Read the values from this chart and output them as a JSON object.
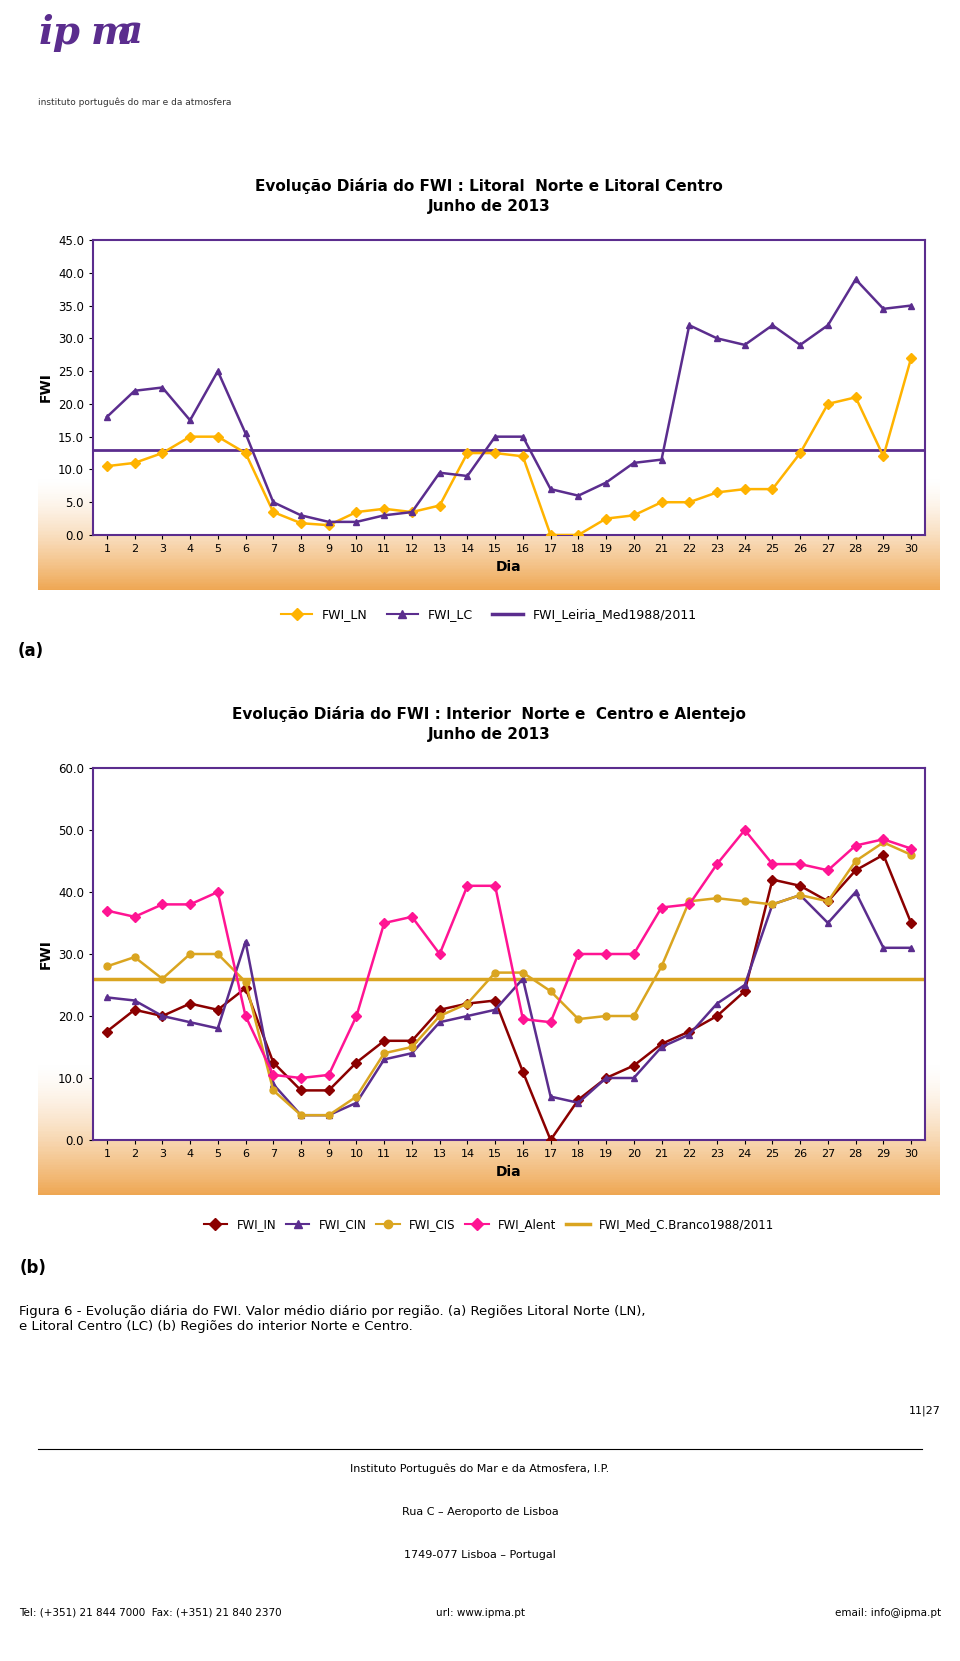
{
  "chart_bg": "#F5E6C8",
  "plot_bg": "#FFFFFF",
  "page_bg": "#FFFFFF",
  "title1": "Evolução Diária do FWI : Litoral  Norte e Litoral Centro\nJunho de 2013",
  "title2": "Evolução Diária do FWI : Interior  Norte e  Centro e Alentejo\nJunho de 2013",
  "xlabel": "Dia",
  "ylabel": "FWI",
  "days": [
    1,
    2,
    3,
    4,
    5,
    6,
    7,
    8,
    9,
    10,
    11,
    12,
    13,
    14,
    15,
    16,
    17,
    18,
    19,
    20,
    21,
    22,
    23,
    24,
    25,
    26,
    27,
    28,
    29,
    30
  ],
  "FWI_LN": [
    10.5,
    11.0,
    12.5,
    15.0,
    15.0,
    12.5,
    3.5,
    1.8,
    1.5,
    3.5,
    4.0,
    3.5,
    4.5,
    12.5,
    12.5,
    12.0,
    0.0,
    0.0,
    2.5,
    3.0,
    5.0,
    5.0,
    6.5,
    7.0,
    7.0,
    12.5,
    20.0,
    21.0,
    12.0,
    27.0
  ],
  "FWI_LC": [
    18.0,
    22.0,
    22.5,
    17.5,
    25.0,
    15.5,
    5.0,
    3.0,
    2.0,
    2.0,
    3.0,
    3.5,
    9.5,
    9.0,
    15.0,
    15.0,
    7.0,
    6.0,
    8.0,
    11.0,
    11.5,
    32.0,
    30.0,
    29.0,
    32.0,
    29.0,
    32.0,
    39.0,
    34.5,
    35.0
  ],
  "FWI_Leiria": 13.0,
  "FWI_IN": [
    17.5,
    21.0,
    20.0,
    22.0,
    21.0,
    24.5,
    12.5,
    8.0,
    8.0,
    12.5,
    16.0,
    16.0,
    21.0,
    22.0,
    22.5,
    11.0,
    0.0,
    6.5,
    10.0,
    12.0,
    15.5,
    17.5,
    20.0,
    24.0,
    42.0,
    41.0,
    38.5,
    43.5,
    46.0,
    35.0
  ],
  "FWI_CIN": [
    23.0,
    22.5,
    20.0,
    19.0,
    18.0,
    32.0,
    9.0,
    4.0,
    4.0,
    6.0,
    13.0,
    14.0,
    19.0,
    20.0,
    21.0,
    26.0,
    7.0,
    6.0,
    10.0,
    10.0,
    15.0,
    17.0,
    22.0,
    25.0,
    38.0,
    39.5,
    35.0,
    40.0,
    31.0,
    31.0
  ],
  "FWI_CIS": [
    28.0,
    29.5,
    26.0,
    30.0,
    30.0,
    25.5,
    8.0,
    4.0,
    4.0,
    7.0,
    14.0,
    15.0,
    20.0,
    22.0,
    27.0,
    27.0,
    24.0,
    19.5,
    20.0,
    20.0,
    28.0,
    38.5,
    39.0,
    38.5,
    38.0,
    39.5,
    38.5,
    45.0,
    48.0,
    46.0
  ],
  "FWI_Alent": [
    37.0,
    36.0,
    38.0,
    38.0,
    40.0,
    20.0,
    10.5,
    10.0,
    10.5,
    20.0,
    35.0,
    36.0,
    30.0,
    41.0,
    41.0,
    19.5,
    19.0,
    30.0,
    30.0,
    30.0,
    37.5,
    38.0,
    44.5,
    50.0,
    44.5,
    44.5,
    43.5,
    47.5,
    48.5,
    47.0
  ],
  "FWI_Med_CB": 26.0,
  "ylim1": [
    0.0,
    45.0
  ],
  "yticks1": [
    0.0,
    5.0,
    10.0,
    15.0,
    20.0,
    25.0,
    30.0,
    35.0,
    40.0,
    45.0
  ],
  "ylim2": [
    0.0,
    60.0
  ],
  "yticks2": [
    0.0,
    10.0,
    20.0,
    30.0,
    40.0,
    50.0,
    60.0
  ],
  "color_LN": "#FFB300",
  "color_LC": "#5B2D8E",
  "color_Leiria": "#5B2D8E",
  "color_IN": "#8B0000",
  "color_CIN": "#5B2D8E",
  "color_CIS": "#DAA520",
  "color_Alent": "#FF1493",
  "color_MedCB": "#DAA520",
  "marker_LN": "D",
  "marker_LC": "^",
  "marker_IN": "D",
  "marker_CIN": "^",
  "marker_CIS": "o",
  "marker_Alent": "D",
  "footer_line1": "Instituto Português do Mar e da Atmosfera, I.P.",
  "footer_line2": "Rua C – Aeroporto de Lisboa",
  "footer_line3": "1749-077 Lisboa – Portugal",
  "footer_left": "Tel: (+351) 21 844 7000  Fax: (+351) 21 840 2370",
  "footer_center": "url: www.ipma.pt",
  "footer_right": "email: info@ipma.pt",
  "footer_page": "11|27"
}
